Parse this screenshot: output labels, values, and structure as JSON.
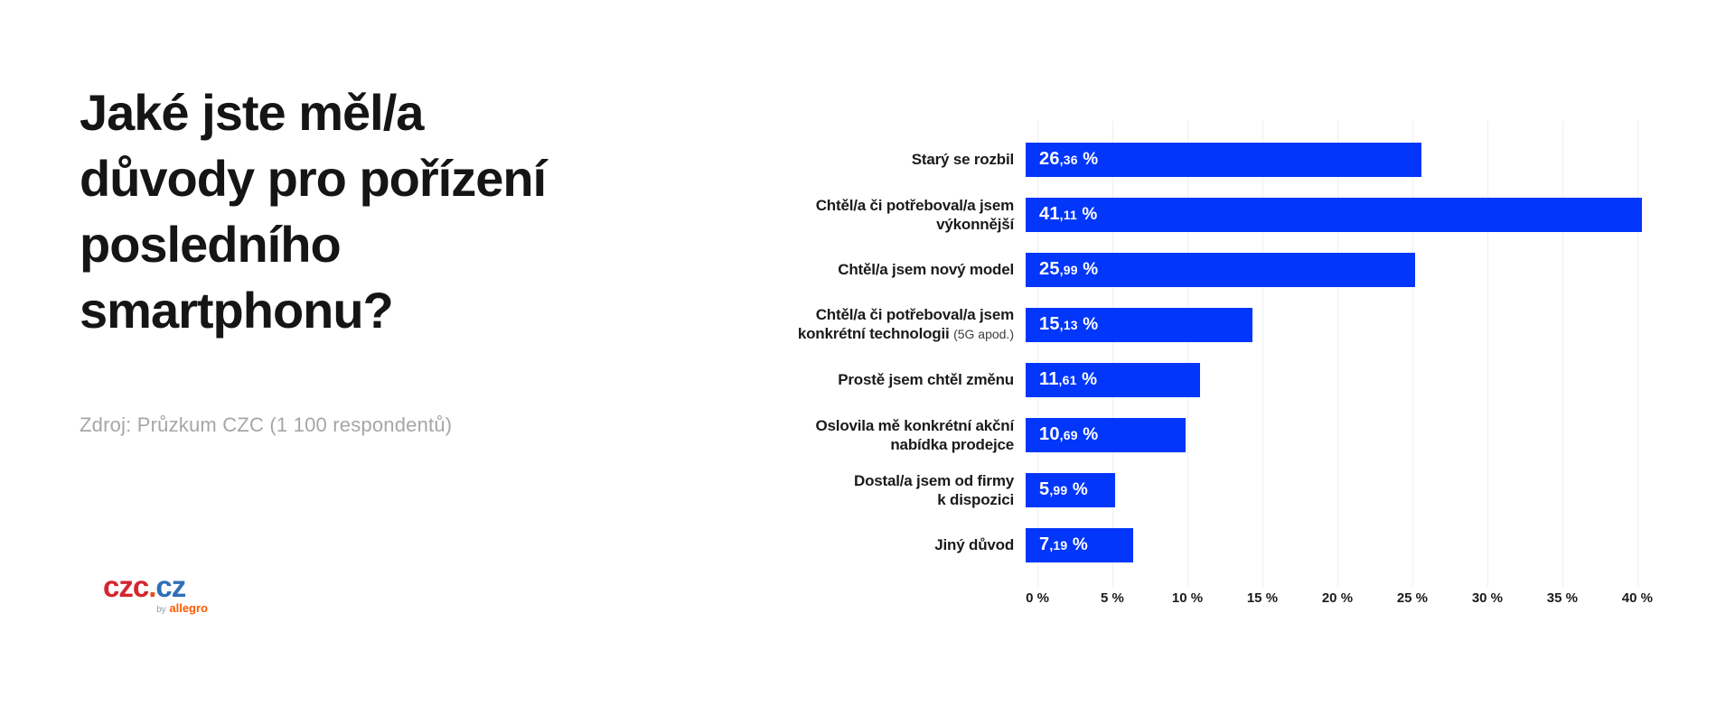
{
  "left_panel": {
    "title": "Jaké jste měl/a důvody pro pořízení posledního smartphonu?",
    "title_lines": [
      "Jaké jste měl/a",
      "důvody pro pořízení",
      "posledního",
      "smartphonu?"
    ],
    "source": "Zdroj: Průzkum CZC (1 100 respondentů)"
  },
  "logo": {
    "czc": "czc",
    "dot": ".",
    "cz": "cz",
    "by": "by",
    "allegro": "allegro",
    "czc_color": "#d4262e",
    "dot_color": "#e84e1e",
    "cz_color": "#2f6fb6",
    "by_color": "#8e9bab",
    "allegro_color": "#ff5a00"
  },
  "chart_data": {
    "type": "bar",
    "orientation": "horizontal",
    "title": "Jaké jste měl/a důvody pro pořízení posledního smartphonu?",
    "categories": [
      "Starý se rozbil",
      "Chtěl/a či potřeboval/a jsem výkonnější",
      "Chtěl/a jsem nový model",
      "Chtěl/a či potřeboval/a jsem konkrétní technologii (5G apod.)",
      "Prostě jsem chtěl změnu",
      "Oslovila mě konkrétní akční nabídka prodejce",
      "Dostal/a jsem od firmy k dispozici",
      "Jiný důvod"
    ],
    "categories_display": [
      {
        "lines": [
          "Starý se rozbil"
        ],
        "note": ""
      },
      {
        "lines": [
          "Chtěl/a či potřeboval/a jsem",
          "výkonnější"
        ],
        "note": ""
      },
      {
        "lines": [
          "Chtěl/a jsem nový model"
        ],
        "note": ""
      },
      {
        "lines": [
          "Chtěl/a či potřeboval/a jsem",
          "konkrétní technologii"
        ],
        "note": "(5G apod.)"
      },
      {
        "lines": [
          "Prostě jsem chtěl změnu"
        ],
        "note": ""
      },
      {
        "lines": [
          "Oslovila mě konkrétní akční",
          "nabídka prodejce"
        ],
        "note": ""
      },
      {
        "lines": [
          "Dostal/a jsem od firmy",
          "k dispozici"
        ],
        "note": ""
      },
      {
        "lines": [
          "Jiný důvod"
        ],
        "note": ""
      }
    ],
    "values": [
      26.36,
      41.11,
      25.99,
      15.13,
      11.61,
      10.69,
      5.99,
      7.19
    ],
    "value_labels": [
      "26,36 %",
      "41,11 %",
      "25,99 %",
      "15,13 %",
      "11,61 %",
      "10,69 %",
      "5,99 %",
      "7,19 %"
    ],
    "x_ticks": [
      "0 %",
      "5 %",
      "10 %",
      "15 %",
      "20 %",
      "25 %",
      "30 %",
      "35 %",
      "40 %"
    ],
    "x_tick_values": [
      0,
      5,
      10,
      15,
      20,
      25,
      30,
      35,
      40
    ],
    "xlim": [
      0,
      43.5
    ],
    "xlabel": "",
    "ylabel": "",
    "grid": true,
    "legend": false,
    "bar_color": "#0236fa",
    "grid_color": "#efefef",
    "value_text_color": "#ffffff"
  }
}
